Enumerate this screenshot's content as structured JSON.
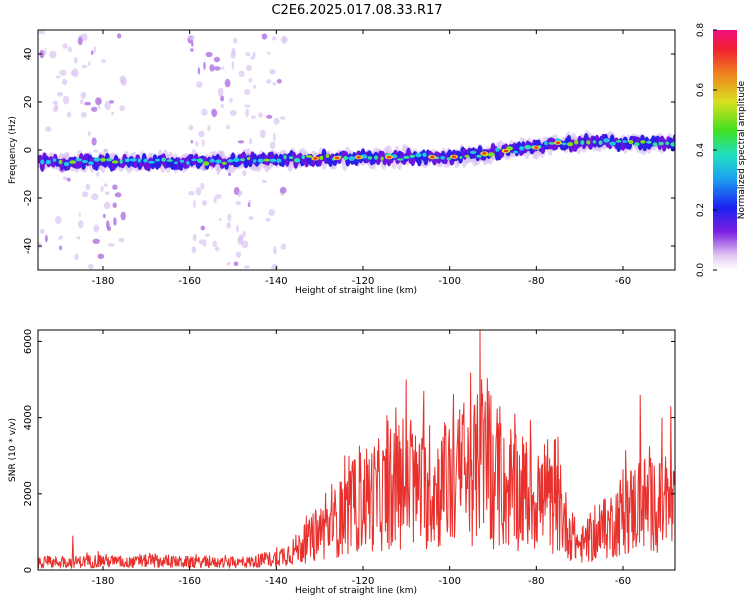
{
  "figure": {
    "title": "C2E6.2025.017.08.33.R17"
  },
  "chart_data": [
    {
      "type": "heatmap",
      "xlabel": "Height of straight line (km)",
      "ylabel": "Frequency (Hz)",
      "xlim": [
        -195,
        -48
      ],
      "ylim": [
        -50,
        50
      ],
      "xticks": [
        -180,
        -160,
        -140,
        -120,
        -100,
        -80,
        -60
      ],
      "yticks": [
        -40,
        -20,
        0,
        20,
        40
      ],
      "colorbar": {
        "label": "Normalized spectral amplitude",
        "range": [
          0.0,
          0.8
        ],
        "ticks": [
          "0.0",
          "0.2",
          "0.4",
          "0.6",
          "0.8"
        ],
        "colormap": "rainbow (white-violet-blue-cyan-green-yellow-red-magenta)"
      },
      "ridge": {
        "description": "Strong narrow band of high amplitude",
        "points": [
          [
            -195,
            -5
          ],
          [
            -180,
            -5
          ],
          [
            -160,
            -5
          ],
          [
            -140,
            -4
          ],
          [
            -120,
            -3
          ],
          [
            -100,
            -3
          ],
          [
            -90,
            -1
          ],
          [
            -80,
            1
          ],
          [
            -75,
            3
          ],
          [
            -60,
            3
          ],
          [
            -48,
            3
          ]
        ]
      },
      "diffuse_regions": [
        {
          "x_range": [
            -195,
            -175
          ],
          "note": "scattered weak violet spots across full frequency range"
        },
        {
          "x_range": [
            -160,
            -145
          ],
          "note": "scattered weak violet spots across full frequency range"
        },
        {
          "x_range": [
            -144,
            -138
          ],
          "note": "sparse weak spots"
        }
      ]
    },
    {
      "type": "line",
      "xlabel": "Height of straight line (km)",
      "ylabel": "SNR (10 * v/v)",
      "xlim": [
        -195,
        -48
      ],
      "ylim": [
        0,
        6300
      ],
      "xticks": [
        -180,
        -160,
        -140,
        -120,
        -100,
        -80,
        -60
      ],
      "yticks": [
        0,
        2000,
        4000,
        6000
      ],
      "series": [
        {
          "color": "#e8302c",
          "envelope_points": [
            [
              -195,
              300
            ],
            [
              -185,
              350
            ],
            [
              -180,
              400
            ],
            [
              -175,
              300
            ],
            [
              -170,
              380
            ],
            [
              -160,
              330
            ],
            [
              -150,
              300
            ],
            [
              -145,
              350
            ],
            [
              -140,
              500
            ],
            [
              -135,
              900
            ],
            [
              -130,
              1500
            ],
            [
              -125,
              2200
            ],
            [
              -120,
              3000
            ],
            [
              -115,
              3200
            ],
            [
              -110,
              3500
            ],
            [
              -105,
              3200
            ],
            [
              -100,
              3600
            ],
            [
              -95,
              4000
            ],
            [
              -92,
              4500
            ],
            [
              -90,
              3500
            ],
            [
              -85,
              3200
            ],
            [
              -80,
              3000
            ],
            [
              -75,
              2600
            ],
            [
              -72,
              1500
            ],
            [
              -70,
              1000
            ],
            [
              -65,
              1500
            ],
            [
              -60,
              2400
            ],
            [
              -55,
              2800
            ],
            [
              -50,
              2500
            ],
            [
              -48,
              2500
            ]
          ],
          "peaks": [
            [
              -187,
              900
            ],
            [
              -110,
              5000
            ],
            [
              -106,
              4700
            ],
            [
              -93,
              6300
            ],
            [
              -91,
              4700
            ],
            [
              -85,
              4100
            ],
            [
              -75,
              3500
            ],
            [
              -56,
              4600
            ],
            [
              -51,
              4000
            ],
            [
              -49,
              4300
            ]
          ]
        }
      ]
    }
  ]
}
